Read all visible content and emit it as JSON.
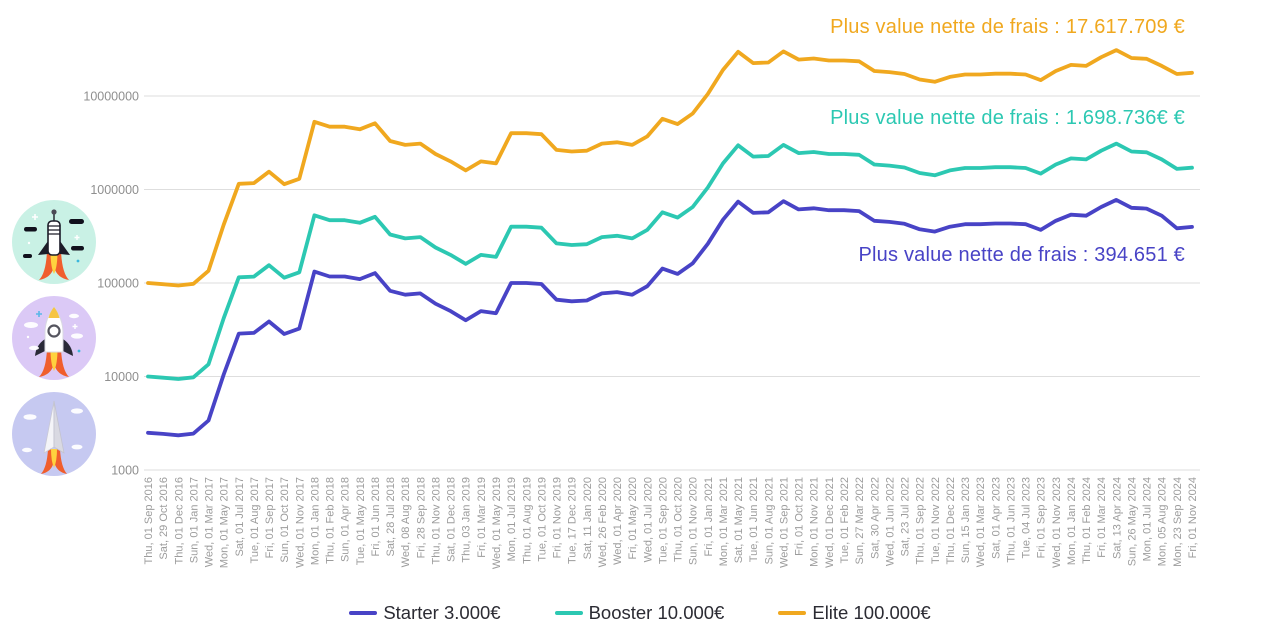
{
  "page": {
    "background": "#ffffff"
  },
  "icons": [
    {
      "name": "rocket-striped",
      "bg": "#c9f1e5"
    },
    {
      "name": "rocket-classic",
      "bg": "#dbc9f6"
    },
    {
      "name": "rocket-dart",
      "bg": "#c6c9f1"
    }
  ],
  "chart_data": {
    "type": "line",
    "yscale": "log",
    "ylim": [
      1000,
      40000000
    ],
    "grid": true,
    "legend_position": "bottom",
    "yticks": [
      1000,
      10000,
      100000,
      1000000,
      10000000
    ],
    "x": [
      "Thu, 01 Sep 2016",
      "Sat, 29 Oct 2016",
      "Thu, 01 Dec 2016",
      "Sun, 01 Jan 2017",
      "Wed, 01 Mar 2017",
      "Mon, 01 May 2017",
      "Sat, 01 Jul 2017",
      "Tue, 01 Aug 2017",
      "Fri, 01 Sep 2017",
      "Sun, 01 Oct 2017",
      "Wed, 01 Nov 2017",
      "Mon, 01 Jan 2018",
      "Thu, 01 Feb 2018",
      "Sun, 01 Apr 2018",
      "Tue, 01 May 2018",
      "Fri, 01 Jun 2018",
      "Sat, 28 Jul 2018",
      "Wed, 08 Aug 2018",
      "Fri, 28 Sep 2018",
      "Thu, 01 Nov 2018",
      "Sat, 01 Dec 2018",
      "Thu, 03 Jan 2019",
      "Fri, 01 Mar 2019",
      "Wed, 01 May 2019",
      "Mon, 01 Jul 2019",
      "Thu, 01 Aug 2019",
      "Tue, 01 Oct 2019",
      "Fri, 01 Nov 2019",
      "Tue, 17 Dec 2019",
      "Sat, 11 Jan 2020",
      "Wed, 26 Feb 2020",
      "Wed, 01 Apr 2020",
      "Fri, 01 May 2020",
      "Wed, 01 Jul 2020",
      "Tue, 01 Sep 2020",
      "Thu, 01 Oct 2020",
      "Sun, 01 Nov 2020",
      "Fri, 01 Jan 2021",
      "Mon, 01 Mar 2021",
      "Sat, 01 May 2021",
      "Tue, 01 Jun 2021",
      "Sun, 01 Aug 2021",
      "Wed, 01 Sep 2021",
      "Fri, 01 Oct 2021",
      "Mon, 01 Nov 2021",
      "Wed, 01 Dec 2021",
      "Tue, 01 Feb 2022",
      "Sun, 27 Mar 2022",
      "Sat, 30 Apr 2022",
      "Wed, 01 Jun 2022",
      "Sat, 23 Jul 2022",
      "Thu, 01 Sep 2022",
      "Tue, 01 Nov 2022",
      "Thu, 01 Dec 2022",
      "Sun, 15 Jan 2023",
      "Wed, 01 Mar 2023",
      "Sat, 01 Apr 2023",
      "Thu, 01 Jun 2023",
      "Tue, 04 Jul 2023",
      "Fri, 01 Sep 2023",
      "Wed, 01 Nov 2023",
      "Mon, 01 Jan 2024",
      "Thu, 01 Feb 2024",
      "Fri, 01 Mar 2024",
      "Sat, 13 Apr 2024",
      "Sun, 26 May 2024",
      "Mon, 01 Jul 2024",
      "Mon, 05 Aug 2024",
      "Mon, 23 Sep 2024",
      "Fri, 01 Nov 2024"
    ],
    "series": [
      {
        "name": "Starter 3.000€",
        "color": "#4843c6",
        "values": [
          2500,
          2430,
          2350,
          2450,
          3380,
          10500,
          28750,
          29250,
          38750,
          28500,
          32500,
          132500,
          117500,
          117500,
          110000,
          127500,
          82500,
          75000,
          77500,
          60000,
          50000,
          40000,
          50000,
          47500,
          100000,
          100000,
          97500,
          66250,
          63750,
          65000,
          77500,
          80000,
          75000,
          92500,
          142500,
          125000,
          162500,
          262500,
          475000,
          742500,
          562500,
          570000,
          750000,
          612500,
          630000,
          600000,
          600000,
          587500,
          462500,
          450000,
          430000,
          375000,
          355000,
          400000,
          425000,
          425000,
          432500,
          432500,
          425000,
          370000,
          462500,
          537500,
          525000,
          650000,
          775000,
          637500,
          625000,
          525000,
          385000,
          397651
        ]
      },
      {
        "name": "Booster 10.000€",
        "color": "#2cc8b2",
        "values": [
          10000,
          9700,
          9400,
          9800,
          13500,
          42000,
          115000,
          117000,
          155000,
          114000,
          130000,
          530000,
          470000,
          470000,
          440000,
          510000,
          330000,
          300000,
          310000,
          240000,
          200000,
          160000,
          200000,
          190000,
          400000,
          400000,
          390000,
          265000,
          255000,
          260000,
          310000,
          320000,
          300000,
          370000,
          570000,
          500000,
          650000,
          1050000,
          1900000,
          2970000,
          2250000,
          2280000,
          3000000,
          2450000,
          2520000,
          2400000,
          2400000,
          2350000,
          1850000,
          1800000,
          1720000,
          1500000,
          1420000,
          1600000,
          1700000,
          1700000,
          1730000,
          1730000,
          1700000,
          1480000,
          1850000,
          2150000,
          2100000,
          2600000,
          3100000,
          2550000,
          2500000,
          2100000,
          1660000,
          1708736
        ]
      },
      {
        "name": "Elite 100.000€",
        "color": "#f0a81f",
        "values": [
          100000,
          97000,
          94000,
          98000,
          135000,
          420000,
          1150000,
          1170000,
          1550000,
          1140000,
          1300000,
          5300000,
          4700000,
          4700000,
          4400000,
          5100000,
          3300000,
          3000000,
          3100000,
          2400000,
          2000000,
          1600000,
          2000000,
          1900000,
          4000000,
          4000000,
          3900000,
          2650000,
          2550000,
          2600000,
          3100000,
          3200000,
          3000000,
          3700000,
          5700000,
          5000000,
          6500000,
          10500000,
          19000000,
          29700000,
          22500000,
          22800000,
          30000000,
          24500000,
          25200000,
          24000000,
          24000000,
          23500000,
          18500000,
          18000000,
          17200000,
          15000000,
          14200000,
          16000000,
          17000000,
          17000000,
          17300000,
          17300000,
          17000000,
          14800000,
          18500000,
          21500000,
          21000000,
          26000000,
          31000000,
          25500000,
          25000000,
          21000000,
          17200000,
          17717709
        ]
      }
    ],
    "annotations": [
      {
        "text": "Plus value nette de frais : 394.651 €",
        "color": "#4843c6"
      },
      {
        "text": "Plus value nette de frais : 1.698.736€ €",
        "color": "#2cc8b2"
      },
      {
        "text": "Plus value nette de frais : 17.617.709 €",
        "color": "#f0a81f"
      }
    ],
    "style": {
      "grid_color": "#dedede",
      "x_axis_color": "#9c9c9c",
      "y_axis_color": "#8f8f8f"
    }
  }
}
